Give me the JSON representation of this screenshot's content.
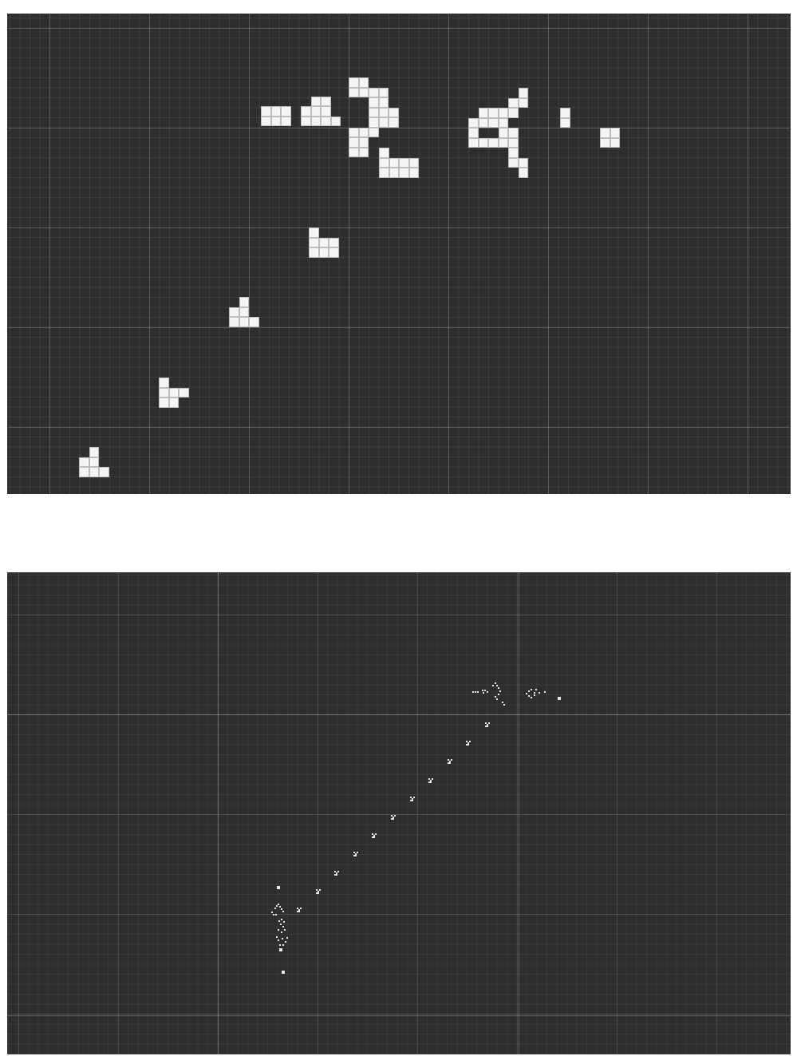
{
  "colors": {
    "background": "#2e2e2e",
    "live_cell": "#f4f4f4",
    "grid_minor": "#464646",
    "grid_major": "#585858"
  },
  "top_view": {
    "patterns": [
      {
        "name": "pattern-block-row",
        "cells": [
          [
            0,
            0
          ],
          [
            1,
            0
          ],
          [
            2,
            0
          ],
          [
            0,
            1
          ],
          [
            1,
            1
          ],
          [
            2,
            1
          ],
          [
            4,
            0
          ],
          [
            5,
            0
          ],
          [
            6,
            0
          ],
          [
            4,
            1
          ],
          [
            6,
            1
          ],
          [
            7,
            1
          ],
          [
            5,
            -1
          ],
          [
            6,
            -1
          ],
          [
            5,
            1
          ]
        ]
      },
      {
        "name": "pattern-arrow",
        "cells": [
          [
            0,
            0
          ],
          [
            1,
            0
          ],
          [
            1,
            1
          ],
          [
            2,
            1
          ],
          [
            2,
            2
          ],
          [
            3,
            2
          ],
          [
            3,
            3
          ],
          [
            4,
            3
          ],
          [
            3,
            4
          ],
          [
            4,
            4
          ],
          [
            2,
            4
          ],
          [
            2,
            5
          ],
          [
            1,
            5
          ],
          [
            1,
            6
          ],
          [
            0,
            6
          ],
          [
            0,
            7
          ],
          [
            1,
            7
          ],
          [
            0,
            1
          ],
          [
            0,
            5
          ],
          [
            2,
            3
          ],
          [
            3,
            1
          ]
        ]
      },
      {
        "name": "glider-1",
        "cells": [
          [
            0,
            0
          ],
          [
            0,
            1
          ],
          [
            1,
            1
          ],
          [
            2,
            1
          ],
          [
            3,
            1
          ],
          [
            3,
            2
          ],
          [
            2,
            2
          ],
          [
            1,
            2
          ],
          [
            0,
            2
          ]
        ]
      },
      {
        "name": "pattern-ring",
        "cells": [
          [
            0,
            1
          ],
          [
            1,
            1
          ],
          [
            2,
            1
          ],
          [
            3,
            1
          ],
          [
            0,
            2
          ],
          [
            3,
            2
          ],
          [
            0,
            3
          ],
          [
            1,
            3
          ],
          [
            2,
            3
          ],
          [
            3,
            3
          ],
          [
            4,
            3
          ],
          [
            4,
            2
          ],
          [
            4,
            4
          ],
          [
            4,
            0
          ],
          [
            4,
            -1
          ],
          [
            5,
            -1
          ],
          [
            5,
            -2
          ],
          [
            4,
            5
          ],
          [
            5,
            5
          ],
          [
            5,
            6
          ],
          [
            3,
            0
          ],
          [
            1,
            0
          ],
          [
            2,
            0
          ]
        ]
      },
      {
        "name": "blinker-bit",
        "cells": [
          [
            0,
            0
          ],
          [
            0,
            1
          ]
        ]
      },
      {
        "name": "block",
        "cells": [
          [
            0,
            0
          ],
          [
            1,
            0
          ],
          [
            0,
            1
          ],
          [
            1,
            1
          ]
        ]
      },
      {
        "name": "glider-2",
        "cells": [
          [
            0,
            0
          ],
          [
            0,
            1
          ],
          [
            0,
            2
          ],
          [
            1,
            2
          ],
          [
            2,
            1
          ],
          [
            2,
            2
          ],
          [
            1,
            1
          ]
        ]
      },
      {
        "name": "glider-3",
        "cells": [
          [
            1,
            0
          ],
          [
            0,
            1
          ],
          [
            1,
            1
          ],
          [
            0,
            2
          ],
          [
            1,
            2
          ],
          [
            2,
            2
          ]
        ]
      },
      {
        "name": "glider-4",
        "cells": [
          [
            0,
            0
          ],
          [
            0,
            1
          ],
          [
            0,
            2
          ],
          [
            1,
            2
          ],
          [
            2,
            1
          ],
          [
            1,
            1
          ]
        ]
      },
      {
        "name": "glider-5",
        "cells": [
          [
            1,
            0
          ],
          [
            0,
            1
          ],
          [
            1,
            1
          ],
          [
            0,
            2
          ],
          [
            1,
            2
          ],
          [
            2,
            2
          ]
        ]
      }
    ]
  },
  "bottom_view": {
    "gliders": 11,
    "top_cluster": "gun-pattern",
    "bottom_cluster": "eater-pattern"
  }
}
